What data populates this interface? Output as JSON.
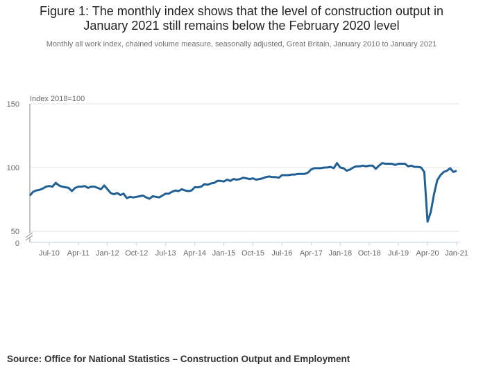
{
  "title_line1": "Figure 1: The monthly index shows that the level of construction output in",
  "title_line2": "January 2021 still remains below the February 2020 level",
  "subtitle": "Monthly all work index, chained volume measure, seasonally adjusted, Great Britain, January 2010 to January 2021",
  "source": "Source: Office for National Statistics – Construction Output and Employment",
  "chart_data": {
    "type": "line",
    "title": "Figure 1: The monthly index shows that the level of construction output in January 2021 still remains below the February 2020 level",
    "ylabel": "Index 2018=100",
    "xlabel": "",
    "ylim": [
      50,
      150
    ],
    "y_axis_break": true,
    "y_ticks": [
      "150",
      "100",
      "50",
      "0"
    ],
    "x_ticks": [
      "Jul-10",
      "Apr-11",
      "Jan-12",
      "Oct-12",
      "Jul-13",
      "Apr-14",
      "Jan-15",
      "Oct-15",
      "Jul-16",
      "Apr-17",
      "Jan-18",
      "Oct-18",
      "Jul-19",
      "Apr-20",
      "Jan-21"
    ],
    "x_start": "Jan-10",
    "x_end": "Jan-21",
    "frequency": "monthly",
    "grid": "horizontal",
    "line_color": "#206095",
    "values": [
      78,
      81,
      82,
      82.5,
      83.5,
      85,
      85.5,
      85,
      88,
      86,
      85,
      84.5,
      84,
      81.5,
      84,
      85,
      85,
      85.5,
      84,
      85,
      85,
      84,
      83,
      86,
      83,
      80,
      79,
      80,
      78.5,
      79.5,
      76,
      77,
      76.5,
      77,
      77.5,
      78,
      76.5,
      75.5,
      77.5,
      77,
      76.5,
      78,
      79.5,
      79.5,
      81,
      82,
      81.5,
      83,
      82,
      81.5,
      82,
      84.5,
      84.5,
      85,
      87,
      86.5,
      87.5,
      88,
      89.5,
      89.5,
      89,
      90.5,
      89.5,
      91,
      90.5,
      91,
      92,
      91.5,
      91,
      91.5,
      90.5,
      91,
      91.5,
      92.5,
      93,
      92.5,
      92.5,
      92,
      94,
      94,
      94,
      94.5,
      94.5,
      95,
      95,
      95,
      96,
      98.5,
      99.5,
      99.5,
      99.5,
      100,
      100,
      100.5,
      99.5,
      103.5,
      100,
      99.5,
      97.5,
      98.5,
      100,
      101,
      101,
      101.5,
      101,
      101.5,
      101.5,
      99,
      101.5,
      103.5,
      103,
      103,
      103,
      102,
      103,
      103,
      103,
      101,
      101.5,
      100.5,
      100.5,
      100,
      96.5,
      57.5,
      65,
      79,
      90,
      94,
      96.5,
      97.5,
      99.5,
      96.5,
      97.5
    ]
  }
}
